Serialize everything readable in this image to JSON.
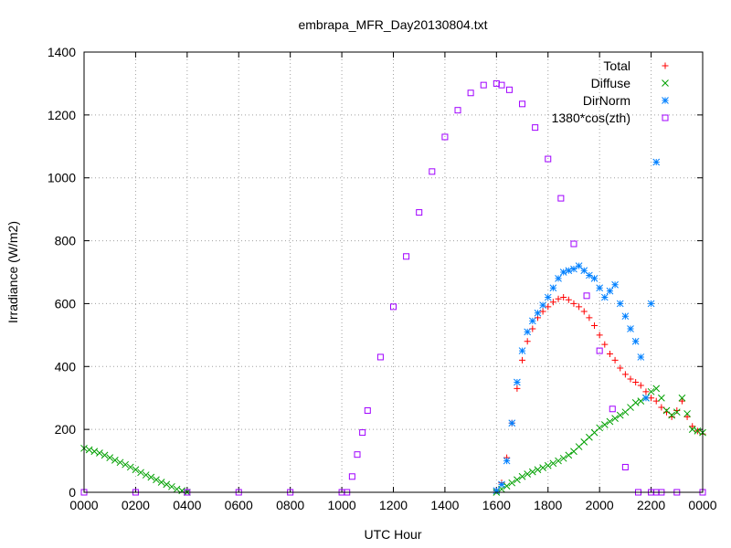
{
  "chart_data": {
    "type": "scatter",
    "title": "embrapa_MFR_Day20130804.txt",
    "xlabel": "UTC Hour",
    "ylabel": "Irradiance (W/m2)",
    "xlim": [
      0,
      24
    ],
    "ylim": [
      0,
      1400
    ],
    "x_ticks": [
      {
        "value": 0,
        "label": "0000"
      },
      {
        "value": 2,
        "label": "0200"
      },
      {
        "value": 4,
        "label": "0400"
      },
      {
        "value": 6,
        "label": "0600"
      },
      {
        "value": 8,
        "label": "0800"
      },
      {
        "value": 10,
        "label": "1000"
      },
      {
        "value": 12,
        "label": "1200"
      },
      {
        "value": 14,
        "label": "1400"
      },
      {
        "value": 16,
        "label": "1600"
      },
      {
        "value": 18,
        "label": "1800"
      },
      {
        "value": 20,
        "label": "2000"
      },
      {
        "value": 22,
        "label": "2200"
      },
      {
        "value": 24,
        "label": "0000"
      }
    ],
    "y_ticks": [
      0,
      200,
      400,
      600,
      800,
      1000,
      1200,
      1400
    ],
    "grid": true,
    "legend_position": "top-right",
    "series": [
      {
        "name": "Total",
        "color": "#ff0000",
        "marker": "plus",
        "x": [
          16.0,
          16.2,
          16.4,
          16.6,
          16.8,
          17.0,
          17.2,
          17.4,
          17.6,
          17.8,
          18.0,
          18.2,
          18.4,
          18.6,
          18.8,
          19.0,
          19.2,
          19.4,
          19.6,
          19.8,
          20.0,
          20.2,
          20.4,
          20.6,
          20.8,
          21.0,
          21.2,
          21.4,
          21.6,
          21.8,
          22.0,
          22.2,
          22.4,
          22.6,
          22.8,
          23.0,
          23.2,
          23.4,
          23.6,
          23.8,
          24.0
        ],
        "y": [
          5,
          30,
          110,
          220,
          330,
          420,
          480,
          520,
          555,
          575,
          590,
          605,
          615,
          620,
          612,
          600,
          590,
          575,
          555,
          530,
          500,
          470,
          440,
          420,
          395,
          375,
          360,
          350,
          340,
          320,
          300,
          290,
          270,
          255,
          240,
          260,
          290,
          240,
          210,
          195,
          185
        ]
      },
      {
        "name": "Diffuse",
        "color": "#00a000",
        "marker": "cross",
        "x": [
          0.0,
          0.2,
          0.4,
          0.6,
          0.8,
          1.0,
          1.2,
          1.4,
          1.6,
          1.8,
          2.0,
          2.2,
          2.4,
          2.6,
          2.8,
          3.0,
          3.2,
          3.4,
          3.6,
          3.8,
          4.0,
          16.0,
          16.2,
          16.4,
          16.6,
          16.8,
          17.0,
          17.2,
          17.4,
          17.6,
          17.8,
          18.0,
          18.2,
          18.4,
          18.6,
          18.8,
          19.0,
          19.2,
          19.4,
          19.6,
          19.8,
          20.0,
          20.2,
          20.4,
          20.6,
          20.8,
          21.0,
          21.2,
          21.4,
          21.6,
          21.8,
          22.0,
          22.2,
          22.4,
          22.6,
          22.8,
          23.0,
          23.2,
          23.4,
          23.6,
          23.8,
          24.0
        ],
        "y": [
          140,
          135,
          130,
          125,
          118,
          110,
          102,
          95,
          88,
          80,
          72,
          63,
          55,
          48,
          40,
          32,
          25,
          18,
          10,
          5,
          0,
          0,
          10,
          20,
          30,
          40,
          50,
          58,
          65,
          72,
          78,
          85,
          92,
          100,
          108,
          118,
          130,
          145,
          160,
          175,
          190,
          205,
          215,
          225,
          235,
          245,
          255,
          270,
          285,
          290,
          300,
          320,
          330,
          300,
          260,
          245,
          255,
          300,
          250,
          200,
          195,
          190
        ]
      },
      {
        "name": "DirNorm",
        "color": "#0080ff",
        "marker": "star",
        "x": [
          16.0,
          16.2,
          16.4,
          16.6,
          16.8,
          17.0,
          17.2,
          17.4,
          17.6,
          17.8,
          18.0,
          18.2,
          18.4,
          18.6,
          18.8,
          19.0,
          19.2,
          19.4,
          19.6,
          19.8,
          20.0,
          20.2,
          20.4,
          20.6,
          20.8,
          21.0,
          21.2,
          21.4,
          21.6,
          21.8,
          22.0,
          22.2
        ],
        "y": [
          5,
          25,
          100,
          220,
          350,
          450,
          510,
          545,
          570,
          595,
          620,
          650,
          680,
          700,
          705,
          710,
          720,
          705,
          690,
          680,
          650,
          620,
          640,
          660,
          600,
          560,
          520,
          480,
          430,
          300,
          600,
          1050
        ]
      },
      {
        "name": "1380*cos(zth)",
        "color": "#a000ff",
        "marker": "square",
        "x": [
          0,
          2,
          4,
          6,
          8,
          10,
          10.2,
          10.4,
          10.6,
          10.8,
          11.0,
          11.5,
          12.0,
          12.5,
          13.0,
          13.5,
          14.0,
          14.5,
          15.0,
          15.5,
          16.0,
          16.2,
          16.5,
          17.0,
          17.5,
          18.0,
          18.5,
          19.0,
          19.5,
          20.0,
          20.5,
          21.0,
          21.5,
          22.0,
          22.2,
          22.4,
          23,
          24
        ],
        "y": [
          0,
          0,
          0,
          0,
          0,
          0,
          0,
          50,
          120,
          190,
          260,
          430,
          590,
          750,
          890,
          1020,
          1130,
          1215,
          1270,
          1295,
          1300,
          1295,
          1280,
          1235,
          1160,
          1060,
          935,
          790,
          625,
          450,
          265,
          80,
          0,
          0,
          0,
          0,
          0,
          0
        ]
      }
    ]
  }
}
